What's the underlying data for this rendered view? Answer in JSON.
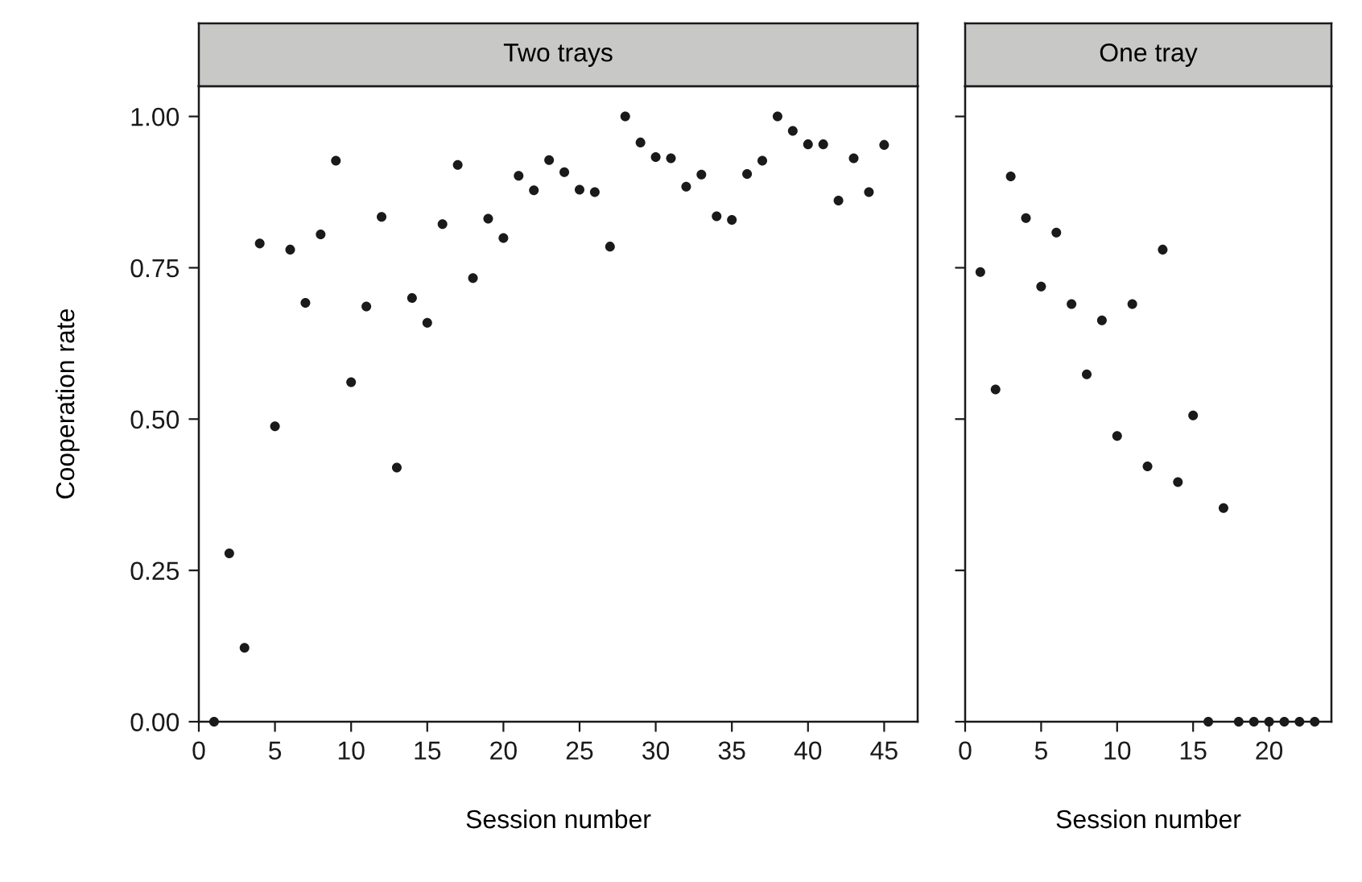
{
  "chart_data": [
    {
      "type": "scatter",
      "title": "Two trays",
      "xlabel": "Session number",
      "ylabel": "Cooperation rate",
      "x": [
        1,
        2,
        3,
        4,
        5,
        6,
        7,
        8,
        9,
        10,
        11,
        12,
        13,
        14,
        15,
        16,
        17,
        18,
        19,
        20,
        21,
        22,
        23,
        24,
        25,
        26,
        27,
        28,
        29,
        30,
        31,
        32,
        33,
        34,
        35,
        36,
        37,
        38,
        39,
        40,
        41,
        42,
        43,
        44,
        45
      ],
      "series": [
        {
          "color": "#1a1a1a",
          "values": [
            0.0,
            0.278,
            0.122,
            0.79,
            0.488,
            0.78,
            0.692,
            0.805,
            0.927,
            0.561,
            0.686,
            0.834,
            0.42,
            0.7,
            0.659,
            0.822,
            0.92,
            0.733,
            0.831,
            0.799,
            0.902,
            0.878,
            0.928,
            0.908,
            0.879,
            0.875,
            0.785,
            1.0,
            0.957,
            0.933,
            0.931,
            0.884,
            0.904,
            0.835,
            0.829,
            0.905,
            0.927,
            1.0,
            0.976,
            0.954,
            0.954,
            0.861,
            0.931,
            0.875,
            0.953
          ]
        }
      ],
      "xlim": [
        0,
        47.2
      ],
      "xticks": [
        0,
        5,
        10,
        15,
        20,
        25,
        30,
        35,
        40,
        45
      ],
      "ylim": [
        0,
        1.05
      ],
      "yticks": [
        {
          "value": 0,
          "label": "0.00"
        },
        {
          "value": 0.25,
          "label": "0.25"
        },
        {
          "value": 0.5,
          "label": "0.50"
        },
        {
          "value": 0.75,
          "label": "0.75"
        },
        {
          "value": 1,
          "label": "1.00"
        }
      ],
      "marker": "circle",
      "grid": false,
      "legend": false
    },
    {
      "type": "scatter",
      "title": "One tray",
      "xlabel": "Session number",
      "x": [
        1,
        2,
        3,
        4,
        5,
        6,
        7,
        8,
        9,
        10,
        11,
        12,
        13,
        14,
        15,
        16,
        17,
        18,
        19,
        20,
        21,
        22,
        23
      ],
      "series": [
        {
          "color": "#1a1a1a",
          "values": [
            0.743,
            0.549,
            0.901,
            0.832,
            0.719,
            0.808,
            0.69,
            0.574,
            0.663,
            0.472,
            0.69,
            0.422,
            0.78,
            0.396,
            0.506,
            0.0,
            0.353,
            0.0,
            0.0,
            0.0,
            0.0,
            0.0,
            0.0
          ]
        }
      ],
      "xlim": [
        0,
        24.1
      ],
      "xticks": [
        0,
        5,
        10,
        15,
        20
      ],
      "ylim": [
        0,
        1.05
      ],
      "yticks": [
        {
          "value": 0,
          "label": null
        },
        {
          "value": 0.25,
          "label": null
        },
        {
          "value": 0.5,
          "label": null
        },
        {
          "value": 0.75,
          "label": null
        },
        {
          "value": 1,
          "label": null
        }
      ],
      "tick_labels": "x",
      "marker": "circle",
      "grid": false,
      "legend": false
    }
  ]
}
